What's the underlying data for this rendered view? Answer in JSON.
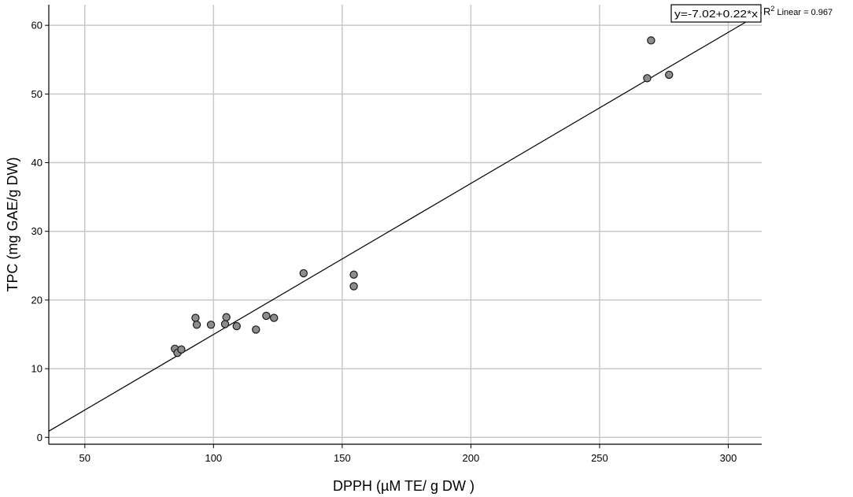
{
  "chart_data": {
    "type": "scatter",
    "xlabel": "DPPH (µM TE/ g DW )",
    "ylabel": "TPC (mg GAE/g DW)",
    "xlim": [
      36,
      313
    ],
    "ylim": [
      -1,
      63
    ],
    "xticks": [
      "50",
      "100",
      "150",
      "200",
      "250",
      "300"
    ],
    "yticks": [
      "0",
      "10",
      "20",
      "30",
      "40",
      "50",
      "60"
    ],
    "grid": true,
    "points": [
      {
        "x": 85,
        "y": 12.9
      },
      {
        "x": 86,
        "y": 12.3
      },
      {
        "x": 87.5,
        "y": 12.8
      },
      {
        "x": 93,
        "y": 17.4
      },
      {
        "x": 93.5,
        "y": 16.4
      },
      {
        "x": 99,
        "y": 16.4
      },
      {
        "x": 104.5,
        "y": 16.5
      },
      {
        "x": 105,
        "y": 17.5
      },
      {
        "x": 109,
        "y": 16.2
      },
      {
        "x": 116.5,
        "y": 15.7
      },
      {
        "x": 120.5,
        "y": 17.7
      },
      {
        "x": 123.5,
        "y": 17.4
      },
      {
        "x": 135,
        "y": 23.9
      },
      {
        "x": 154.5,
        "y": 23.7
      },
      {
        "x": 154.5,
        "y": 22.0
      },
      {
        "x": 268.5,
        "y": 52.3
      },
      {
        "x": 270,
        "y": 57.8
      },
      {
        "x": 277,
        "y": 52.8
      }
    ],
    "fit_line": {
      "intercept": -7.02,
      "slope": 0.22
    },
    "equation_label": "y=-7.02+0.22*x",
    "r2_prefix": "R",
    "r2_superscript": "2",
    "r2_label": " Linear = 0.967",
    "colors": {
      "point_fill": "#8c8c8c",
      "point_stroke": "#1a1a1a",
      "grid": "#c8c8c8",
      "axis": "#000000",
      "fit_line": "#000000"
    }
  }
}
